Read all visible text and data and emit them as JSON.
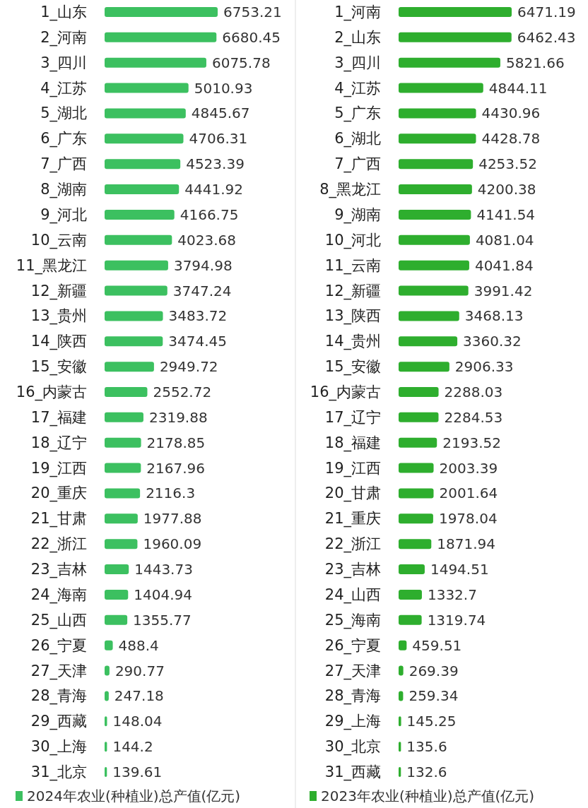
{
  "chart_data": [
    {
      "type": "bar",
      "orientation": "horizontal",
      "data_labels": true,
      "legend": "bottom",
      "categories": [
        "1_山东",
        "2_河南",
        "3_四川",
        "4_江苏",
        "5_湖北",
        "6_广东",
        "7_广西",
        "8_湖南",
        "9_河北",
        "10_云南",
        "11_黑龙江",
        "12_新疆",
        "13_贵州",
        "14_陕西",
        "15_安徽",
        "16_内蒙古",
        "17_福建",
        "18_辽宁",
        "19_江西",
        "20_重庆",
        "21_甘肃",
        "22_浙江",
        "23_吉林",
        "24_海南",
        "25_山西",
        "26_宁夏",
        "27_天津",
        "28_青海",
        "29_西藏",
        "30_上海",
        "31_北京"
      ],
      "series": [
        {
          "name": "2024年农业(种植业)总产值(亿元)",
          "color": "#3cc060",
          "values": [
            6753.21,
            6680.45,
            6075.78,
            5010.93,
            4845.67,
            4706.31,
            4523.39,
            4441.92,
            4166.75,
            4023.68,
            3794.98,
            3747.24,
            3483.72,
            3474.45,
            2949.72,
            2552.72,
            2319.88,
            2178.85,
            2167.96,
            2116.3,
            1977.88,
            1960.09,
            1443.73,
            1404.94,
            1355.77,
            488.4,
            290.77,
            247.18,
            148.04,
            144.2,
            139.61
          ]
        }
      ]
    },
    {
      "type": "bar",
      "orientation": "horizontal",
      "data_labels": true,
      "legend": "bottom",
      "categories": [
        "1_河南",
        "2_山东",
        "3_四川",
        "4_江苏",
        "5_广东",
        "6_湖北",
        "7_广西",
        "8_黑龙江",
        "9_湖南",
        "10_河北",
        "11_云南",
        "12_新疆",
        "13_陕西",
        "14_贵州",
        "15_安徽",
        "16_内蒙古",
        "17_辽宁",
        "18_福建",
        "19_江西",
        "20_甘肃",
        "21_重庆",
        "22_浙江",
        "23_吉林",
        "24_山西",
        "25_海南",
        "26_宁夏",
        "27_天津",
        "28_青海",
        "29_上海",
        "30_北京",
        "31_西藏"
      ],
      "series": [
        {
          "name": "2023年农业(种植业)总产值(亿元)",
          "color": "#2eae2e",
          "values": [
            6471.19,
            6462.43,
            5821.66,
            4844.11,
            4430.96,
            4428.78,
            4253.52,
            4200.38,
            4141.54,
            4081.04,
            4041.84,
            3991.42,
            3468.13,
            3360.32,
            2906.33,
            2288.03,
            2284.53,
            2193.52,
            2003.39,
            2001.64,
            1978.04,
            1871.94,
            1494.51,
            1332.7,
            1319.74,
            459.51,
            269.39,
            259.34,
            145.25,
            135.6,
            132.6
          ]
        }
      ]
    }
  ]
}
